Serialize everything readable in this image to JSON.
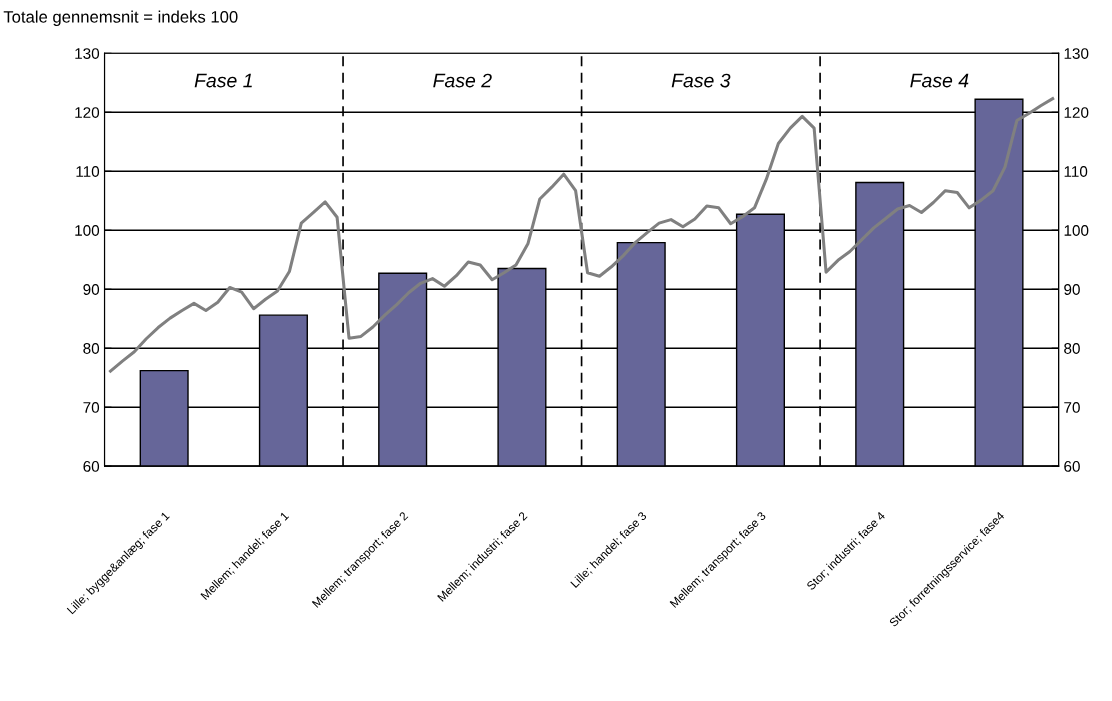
{
  "chart_data": [
    {
      "type": "bar",
      "title": "Totale gennemsnit = indeks 100",
      "categories": [
        "Lille; bygge&anlæg; fase 1",
        "Mellem; handel; fase 1",
        "Mellem; transport; fase 2",
        "Mellem; industri; fase 2",
        "Lille; handel; fase 3",
        "Mellem; transport; fase 3",
        "Stor; industri; fase 4",
        "Stor; forretningsservice; fase4"
      ],
      "values": [
        76.2,
        85.6,
        92.7,
        93.5,
        97.9,
        102.7,
        108.1,
        122.2
      ],
      "color": "#666699",
      "ylim": [
        60,
        130
      ],
      "yticks": [
        60,
        70,
        80,
        90,
        100,
        110,
        120,
        130
      ],
      "y2lim": [
        60,
        130
      ],
      "y2ticks": [
        60,
        70,
        80,
        90,
        100,
        110,
        120,
        130
      ],
      "grid": "y",
      "annotations": [
        "Fase 1",
        "Fase 2",
        "Fase 3",
        "Fase 4"
      ]
    },
    {
      "type": "line",
      "color": "#808080",
      "categories": [
        null,
        null,
        null,
        null,
        null,
        null,
        null,
        null,
        null,
        null,
        null,
        null,
        null,
        null,
        null,
        null,
        null,
        null,
        null,
        null,
        null,
        null,
        null,
        null,
        null,
        null,
        null,
        null,
        null,
        null,
        null,
        null,
        null,
        null,
        null,
        null,
        null,
        null,
        null,
        null,
        null,
        null,
        null,
        null,
        null,
        null,
        null,
        null,
        null,
        null,
        null,
        null,
        null,
        null,
        null,
        null,
        null,
        null,
        null,
        null,
        null,
        null,
        null,
        null,
        null,
        null,
        null,
        null,
        null,
        null,
        null,
        null,
        null,
        null,
        null,
        null,
        null,
        null,
        null,
        null
      ],
      "values": [
        76.1,
        77.8,
        79.4,
        81.6,
        83.5,
        85.1,
        86.4,
        87.6,
        86.4,
        87.8,
        90.3,
        89.5,
        86.7,
        88.3,
        89.7,
        93.0,
        101.2,
        103.0,
        104.8,
        102.2,
        81.7,
        82.0,
        83.6,
        85.6,
        87.4,
        89.4,
        91.0,
        91.8,
        90.5,
        92.3,
        94.6,
        94.1,
        91.6,
        92.8,
        94.1,
        97.7,
        105.3,
        107.3,
        109.5,
        106.7,
        92.8,
        92.2,
        93.8,
        95.7,
        97.9,
        99.6,
        101.2,
        101.8,
        100.6,
        101.9,
        104.1,
        103.8,
        101.1,
        102.3,
        103.8,
        108.7,
        114.7,
        117.3,
        119.3,
        117.3,
        92.9,
        94.9,
        96.4,
        98.4,
        100.4,
        102.0,
        103.6,
        104.2,
        103.0,
        104.7,
        106.7,
        106.4,
        103.8,
        105.1,
        106.7,
        110.7,
        118.6,
        119.8,
        121.1,
        122.3
      ],
      "ylim": [
        60,
        130
      ],
      "yticks": [
        60,
        70,
        80,
        90,
        100,
        110,
        120,
        130
      ],
      "tick_labels": false
    }
  ]
}
